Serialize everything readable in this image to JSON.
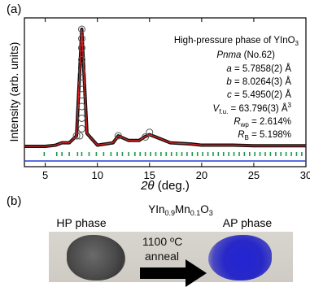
{
  "panel_a_label": "(a)",
  "panel_b_label": "(b)",
  "annotation": {
    "title": "High-pressure phase of YInO",
    "title_sub": "3",
    "spacegroup_italic": "Pnma",
    "spacegroup_rest": " (No.62)",
    "a_sym": "a",
    "a_val": " = 5.7858(2) Å",
    "b_sym": "b",
    "b_val": " = 8.0264(3) Å",
    "c_sym": "c",
    "c_val": " = 5.4950(2) Å",
    "v_sym": "V",
    "v_sub": "f.u.",
    "v_val": " = 63.796(3) Å",
    "v_sup": "3",
    "rwp_sym": "R",
    "rwp_sub": "wp",
    "rwp_val": " = 2.614%",
    "rb_sym": "R",
    "rb_sub": "B",
    "rb_val": " = 5.198%"
  },
  "chart_data": {
    "type": "line",
    "xlabel_italic": "2θ",
    "xlabel_rest": " (deg.)",
    "ylabel": "Intensity (arb. units)",
    "xlim": [
      3,
      30
    ],
    "ylim": [
      0,
      100
    ],
    "x_ticks": [
      "5",
      "10",
      "15",
      "20",
      "25",
      "30"
    ],
    "x_tick_values": [
      5,
      10,
      15,
      20,
      25,
      30
    ],
    "series": [
      {
        "role": "observed",
        "color": "#111111",
        "x": [
          3,
          5,
          6,
          6.6,
          7.3,
          8,
          8.5,
          9,
          10,
          11.5,
          12,
          13,
          14,
          14.5,
          15,
          15.6,
          17,
          19,
          20,
          23,
          25,
          27,
          30
        ],
        "values": [
          0,
          0,
          1,
          3,
          3,
          9,
          100,
          11,
          1,
          3,
          9,
          5,
          5,
          8,
          10,
          8,
          3,
          2,
          1,
          1,
          0.5,
          0.5,
          0.5
        ]
      },
      {
        "role": "calculated",
        "color": "#e02020",
        "x": [
          3,
          5,
          6,
          6.6,
          7.3,
          8,
          8.5,
          9,
          10,
          11.5,
          12,
          13,
          14,
          14.5,
          15,
          15.6,
          17,
          19,
          20,
          23,
          25,
          27,
          30
        ],
        "values": [
          0,
          0,
          1,
          3,
          3,
          9,
          100,
          11,
          1,
          3,
          9,
          5,
          5,
          8,
          10,
          8,
          3,
          2,
          1,
          1,
          0.5,
          0.5,
          0.5
        ]
      },
      {
        "role": "difference",
        "color": "#2040d0"
      }
    ],
    "bragg_color": "#1a9a4a",
    "bragg_positions": [
      4.9,
      6.1,
      6.6,
      7.3,
      8.1,
      8.5,
      9.2,
      9.9,
      10.6,
      11.3,
      11.9,
      12.4,
      13.0,
      13.6,
      14.1,
      14.6,
      15.1,
      15.6,
      16.1,
      16.6,
      17.1,
      17.6,
      18.1,
      18.6,
      19.1,
      19.6,
      20.1,
      20.6,
      21.1,
      21.6,
      22.1,
      22.6,
      23.1,
      23.6,
      24.1,
      24.6,
      25.1,
      25.6,
      26.1,
      26.6,
      27.1,
      27.6,
      28.1,
      28.6,
      29.1,
      29.6
    ]
  },
  "photo": {
    "compound_prefix": "YIn",
    "compound_sub1": "0.9",
    "compound_mid": "Mn",
    "compound_sub2": "0.1",
    "compound_end": "O",
    "compound_sub3": "3",
    "hp_label": "HP phase",
    "ap_label": "AP phase",
    "temperature": "1100 ºC",
    "process": "anneal"
  }
}
